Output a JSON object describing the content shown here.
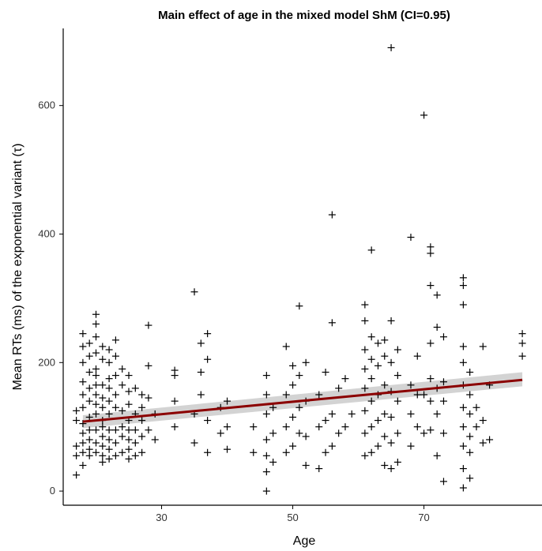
{
  "chart_data": {
    "type": "scatter",
    "title": "Main effect of age in the mixed model ShM (CI=0.95)",
    "xlabel": "Age",
    "ylabel": "Mean RTs (ms) of the exponential variant (τ)",
    "xlim": [
      15,
      88
    ],
    "ylim": [
      -22,
      720
    ],
    "xticks": [
      30,
      50,
      70
    ],
    "yticks": [
      0,
      200,
      400,
      600
    ],
    "grid": false,
    "marker": "plus",
    "colors": {
      "points": "#000000",
      "fit_line": "#8b0000",
      "ci_band": "#c8c8c8"
    },
    "fit": {
      "x": [
        18,
        85
      ],
      "y": [
        108,
        173
      ]
    },
    "ci": {
      "x": [
        18,
        85
      ],
      "lower": [
        98,
        163
      ],
      "upper": [
        118,
        185
      ]
    },
    "points": [
      [
        17,
        25
      ],
      [
        17,
        55
      ],
      [
        17,
        70
      ],
      [
        17,
        110
      ],
      [
        17,
        125
      ],
      [
        18,
        40
      ],
      [
        18,
        60
      ],
      [
        18,
        75
      ],
      [
        18,
        90
      ],
      [
        18,
        105
      ],
      [
        18,
        130
      ],
      [
        18,
        150
      ],
      [
        18,
        170
      ],
      [
        18,
        200
      ],
      [
        18,
        225
      ],
      [
        18,
        245
      ],
      [
        19,
        55
      ],
      [
        19,
        65
      ],
      [
        19,
        80
      ],
      [
        19,
        95
      ],
      [
        19,
        115
      ],
      [
        19,
        140
      ],
      [
        19,
        160
      ],
      [
        19,
        185
      ],
      [
        19,
        210
      ],
      [
        19,
        230
      ],
      [
        20,
        60
      ],
      [
        20,
        75
      ],
      [
        20,
        95
      ],
      [
        20,
        120
      ],
      [
        20,
        135
      ],
      [
        20,
        150
      ],
      [
        20,
        165
      ],
      [
        20,
        180
      ],
      [
        20,
        190
      ],
      [
        20,
        215
      ],
      [
        20,
        240
      ],
      [
        20,
        260
      ],
      [
        20,
        275
      ],
      [
        21,
        45
      ],
      [
        21,
        55
      ],
      [
        21,
        70
      ],
      [
        21,
        85
      ],
      [
        21,
        100
      ],
      [
        21,
        110
      ],
      [
        21,
        130
      ],
      [
        21,
        145
      ],
      [
        21,
        165
      ],
      [
        21,
        205
      ],
      [
        21,
        225
      ],
      [
        22,
        50
      ],
      [
        22,
        65
      ],
      [
        22,
        80
      ],
      [
        22,
        95
      ],
      [
        22,
        120
      ],
      [
        22,
        140
      ],
      [
        22,
        160
      ],
      [
        22,
        175
      ],
      [
        22,
        200
      ],
      [
        22,
        220
      ],
      [
        23,
        55
      ],
      [
        23,
        75
      ],
      [
        23,
        95
      ],
      [
        23,
        130
      ],
      [
        23,
        150
      ],
      [
        23,
        180
      ],
      [
        23,
        210
      ],
      [
        23,
        235
      ],
      [
        24,
        60
      ],
      [
        24,
        85
      ],
      [
        24,
        100
      ],
      [
        24,
        125
      ],
      [
        24,
        165
      ],
      [
        24,
        190
      ],
      [
        25,
        50
      ],
      [
        25,
        65
      ],
      [
        25,
        80
      ],
      [
        25,
        95
      ],
      [
        25,
        110
      ],
      [
        25,
        135
      ],
      [
        25,
        155
      ],
      [
        25,
        180
      ],
      [
        26,
        55
      ],
      [
        26,
        75
      ],
      [
        26,
        95
      ],
      [
        26,
        120
      ],
      [
        26,
        160
      ],
      [
        27,
        60
      ],
      [
        27,
        85
      ],
      [
        27,
        110
      ],
      [
        27,
        130
      ],
      [
        27,
        150
      ],
      [
        28,
        95
      ],
      [
        28,
        145
      ],
      [
        28,
        195
      ],
      [
        28,
        258
      ],
      [
        29,
        80
      ],
      [
        29,
        120
      ],
      [
        32,
        100
      ],
      [
        32,
        140
      ],
      [
        32,
        180
      ],
      [
        32,
        188
      ],
      [
        35,
        75
      ],
      [
        35,
        120
      ],
      [
        35,
        310
      ],
      [
        36,
        150
      ],
      [
        36,
        185
      ],
      [
        36,
        230
      ],
      [
        37,
        60
      ],
      [
        37,
        110
      ],
      [
        37,
        205
      ],
      [
        37,
        245
      ],
      [
        39,
        90
      ],
      [
        39,
        130
      ],
      [
        40,
        65
      ],
      [
        40,
        100
      ],
      [
        40,
        140
      ],
      [
        44,
        60
      ],
      [
        44,
        100
      ],
      [
        46,
        0
      ],
      [
        46,
        30
      ],
      [
        46,
        55
      ],
      [
        46,
        80
      ],
      [
        46,
        120
      ],
      [
        46,
        150
      ],
      [
        46,
        180
      ],
      [
        47,
        45
      ],
      [
        47,
        90
      ],
      [
        47,
        130
      ],
      [
        49,
        60
      ],
      [
        49,
        100
      ],
      [
        49,
        150
      ],
      [
        49,
        225
      ],
      [
        50,
        70
      ],
      [
        50,
        115
      ],
      [
        50,
        165
      ],
      [
        50,
        195
      ],
      [
        51,
        90
      ],
      [
        51,
        130
      ],
      [
        51,
        180
      ],
      [
        51,
        288
      ],
      [
        52,
        40
      ],
      [
        52,
        85
      ],
      [
        52,
        140
      ],
      [
        52,
        200
      ],
      [
        54,
        35
      ],
      [
        54,
        100
      ],
      [
        54,
        150
      ],
      [
        55,
        60
      ],
      [
        55,
        110
      ],
      [
        55,
        185
      ],
      [
        56,
        70
      ],
      [
        56,
        120
      ],
      [
        56,
        262
      ],
      [
        56,
        430
      ],
      [
        57,
        90
      ],
      [
        57,
        160
      ],
      [
        58,
        100
      ],
      [
        58,
        175
      ],
      [
        59,
        120
      ],
      [
        61,
        55
      ],
      [
        61,
        90
      ],
      [
        61,
        125
      ],
      [
        61,
        160
      ],
      [
        61,
        190
      ],
      [
        61,
        220
      ],
      [
        61,
        265
      ],
      [
        61,
        290
      ],
      [
        62,
        60
      ],
      [
        62,
        100
      ],
      [
        62,
        140
      ],
      [
        62,
        175
      ],
      [
        62,
        205
      ],
      [
        62,
        240
      ],
      [
        62,
        375
      ],
      [
        63,
        70
      ],
      [
        63,
        110
      ],
      [
        63,
        150
      ],
      [
        63,
        195
      ],
      [
        63,
        230
      ],
      [
        64,
        40
      ],
      [
        64,
        85
      ],
      [
        64,
        120
      ],
      [
        64,
        165
      ],
      [
        64,
        210
      ],
      [
        64,
        235
      ],
      [
        65,
        35
      ],
      [
        65,
        75
      ],
      [
        65,
        115
      ],
      [
        65,
        155
      ],
      [
        65,
        200
      ],
      [
        65,
        265
      ],
      [
        65,
        690
      ],
      [
        66,
        45
      ],
      [
        66,
        90
      ],
      [
        66,
        140
      ],
      [
        66,
        180
      ],
      [
        66,
        220
      ],
      [
        68,
        70
      ],
      [
        68,
        120
      ],
      [
        68,
        165
      ],
      [
        68,
        395
      ],
      [
        69,
        100
      ],
      [
        69,
        150
      ],
      [
        69,
        210
      ],
      [
        70,
        90
      ],
      [
        70,
        150
      ],
      [
        70,
        585
      ],
      [
        71,
        95
      ],
      [
        71,
        140
      ],
      [
        71,
        175
      ],
      [
        71,
        230
      ],
      [
        71,
        320
      ],
      [
        71,
        370
      ],
      [
        71,
        380
      ],
      [
        72,
        55
      ],
      [
        72,
        120
      ],
      [
        72,
        160
      ],
      [
        72,
        255
      ],
      [
        72,
        305
      ],
      [
        73,
        15
      ],
      [
        73,
        90
      ],
      [
        73,
        140
      ],
      [
        73,
        170
      ],
      [
        73,
        240
      ],
      [
        76,
        5
      ],
      [
        76,
        35
      ],
      [
        76,
        70
      ],
      [
        76,
        100
      ],
      [
        76,
        130
      ],
      [
        76,
        165
      ],
      [
        76,
        200
      ],
      [
        76,
        225
      ],
      [
        76,
        290
      ],
      [
        76,
        320
      ],
      [
        76,
        332
      ],
      [
        77,
        20
      ],
      [
        77,
        60
      ],
      [
        77,
        85
      ],
      [
        77,
        120
      ],
      [
        77,
        150
      ],
      [
        77,
        185
      ],
      [
        78,
        100
      ],
      [
        78,
        130
      ],
      [
        79,
        75
      ],
      [
        79,
        110
      ],
      [
        79,
        225
      ],
      [
        80,
        80
      ],
      [
        80,
        165
      ],
      [
        85,
        210
      ],
      [
        85,
        230
      ],
      [
        85,
        245
      ]
    ]
  }
}
